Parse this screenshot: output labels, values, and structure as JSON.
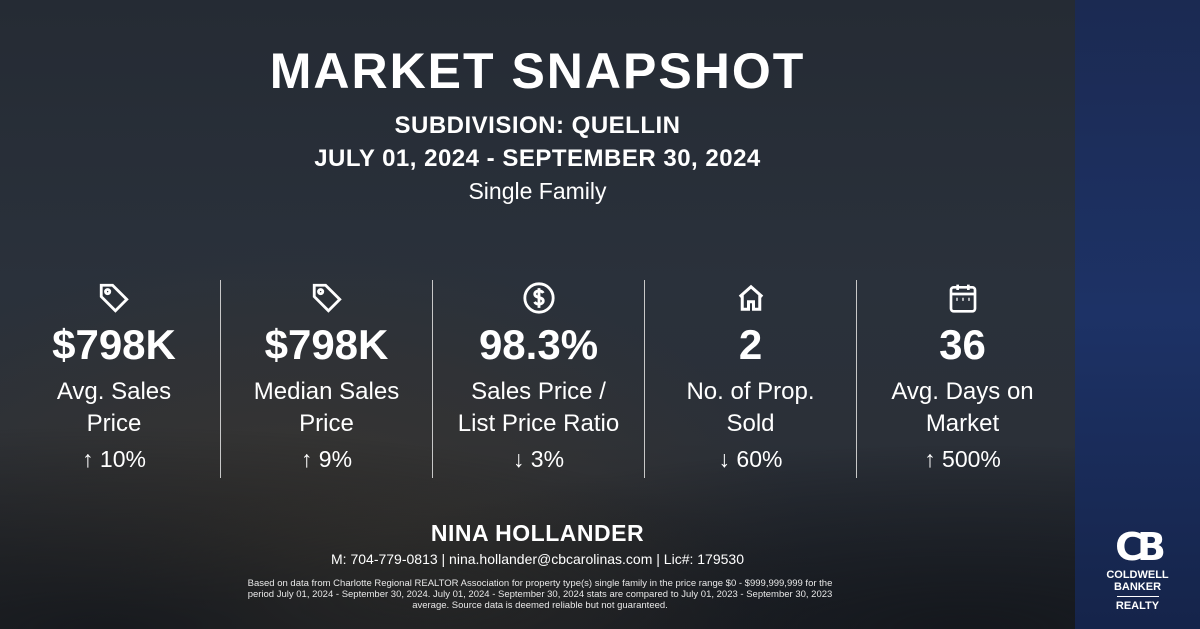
{
  "title": "MARKET SNAPSHOT",
  "subdivision": "SUBDIVISION: QUELLIN",
  "date_range": "JULY 01, 2024 - SEPTEMBER 30, 2024",
  "property_type": "Single Family",
  "stats": [
    {
      "icon": "price-tag-icon",
      "value": "$798K",
      "label1": "Avg. Sales",
      "label2": "Price",
      "change": "↑ 10%"
    },
    {
      "icon": "price-tag-icon",
      "value": "$798K",
      "label1": "Median Sales",
      "label2": "Price",
      "change": "↑ 9%"
    },
    {
      "icon": "dollar-circle-icon",
      "value": "98.3%",
      "label1": "Sales Price /",
      "label2": "List Price Ratio",
      "change": "↓ 3%"
    },
    {
      "icon": "house-icon",
      "value": "2",
      "label1": "No. of Prop.",
      "label2": "Sold",
      "change": "↓ 60%"
    },
    {
      "icon": "calendar-icon",
      "value": "36",
      "label1": "Avg. Days on",
      "label2": "Market",
      "change": "↑ 500%"
    }
  ],
  "agent": {
    "name": "NINA HOLLANDER",
    "contact": "M: 704-779-0813 | nina.hollander@cbcarolinas.com | Lic#: 179530"
  },
  "disclaimer": "Based on data from Charlotte Regional REALTOR Association for property type(s) single family in the price range $0 - $999,999,999 for the period July 01, 2024 - September 30, 2024. July 01, 2024 - September 30, 2024 stats are compared to July 01, 2023 - September 30, 2023 average. Source data is deemed reliable but not guaranteed.",
  "logo": {
    "mark": "CB",
    "line1": "COLDWELL",
    "line2": "BANKER",
    "line3": "REALTY"
  },
  "colors": {
    "background": "#2a313b",
    "brand_panel": "#1d3266",
    "text": "#ffffff"
  }
}
